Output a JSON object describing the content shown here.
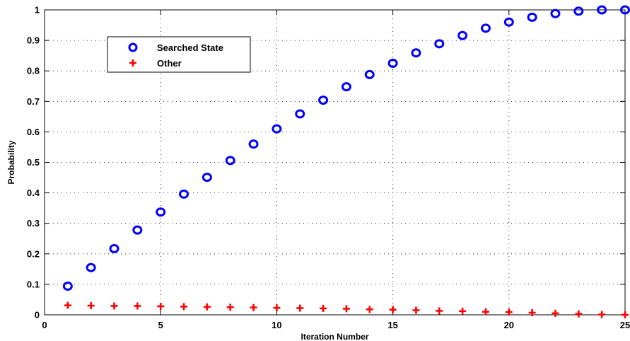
{
  "chart_data": {
    "type": "scatter",
    "xlabel": "Iteration Number",
    "ylabel": "Probability",
    "xlim": [
      0,
      25
    ],
    "ylim": [
      0,
      1
    ],
    "xticks": [
      0,
      5,
      10,
      15,
      20,
      25
    ],
    "xtick_labels": [
      "0",
      "5",
      "10",
      "15",
      "20",
      "25"
    ],
    "yticks": [
      0,
      0.1,
      0.2,
      0.3,
      0.4,
      0.5,
      0.6,
      0.7,
      0.8,
      0.9,
      1
    ],
    "ytick_labels": [
      "0",
      "0.1",
      "0.2",
      "0.3",
      "0.4",
      "0.5",
      "0.6",
      "0.7",
      "0.8",
      "0.9",
      "1"
    ],
    "grid": true,
    "legend_position": "upper-left",
    "series": [
      {
        "name": "Searched State",
        "marker": "circle",
        "color": "#0000ff",
        "x": [
          1,
          2,
          3,
          4,
          5,
          6,
          7,
          8,
          9,
          10,
          11,
          12,
          13,
          14,
          15,
          16,
          17,
          18,
          19,
          20,
          21,
          22,
          23,
          24,
          25
        ],
        "y": [
          0.094,
          0.155,
          0.217,
          0.278,
          0.337,
          0.396,
          0.451,
          0.506,
          0.56,
          0.61,
          0.659,
          0.704,
          0.748,
          0.788,
          0.825,
          0.859,
          0.889,
          0.916,
          0.94,
          0.96,
          0.976,
          0.988,
          0.996,
          1.0,
          1.0
        ]
      },
      {
        "name": "Other",
        "marker": "plus",
        "color": "#ff0000",
        "x": [
          1,
          2,
          3,
          4,
          5,
          6,
          7,
          8,
          9,
          10,
          11,
          12,
          13,
          14,
          15,
          16,
          17,
          18,
          19,
          20,
          21,
          22,
          23,
          24,
          25
        ],
        "y": [
          0.031,
          0.03,
          0.029,
          0.029,
          0.028,
          0.027,
          0.026,
          0.025,
          0.024,
          0.023,
          0.022,
          0.021,
          0.02,
          0.018,
          0.017,
          0.015,
          0.013,
          0.012,
          0.01,
          0.009,
          0.007,
          0.005,
          0.003,
          0.001,
          0.0
        ]
      }
    ]
  }
}
